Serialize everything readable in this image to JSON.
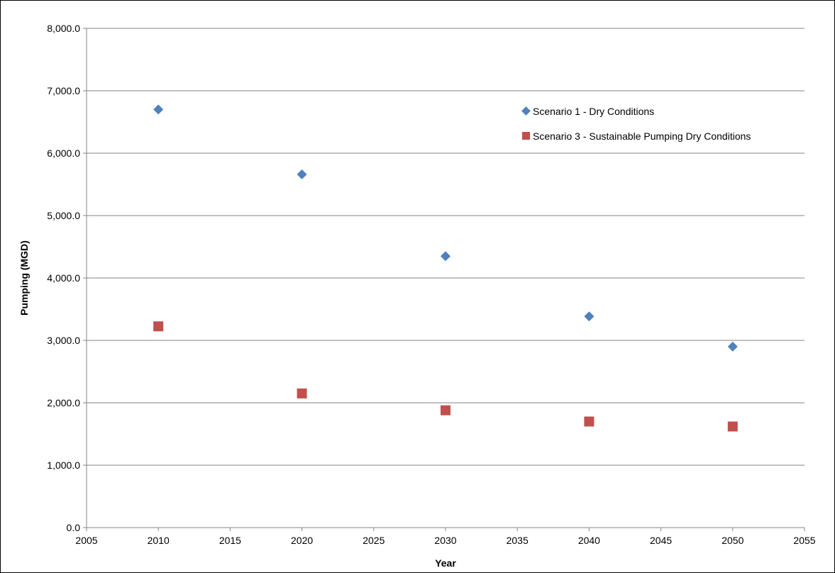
{
  "chart_data": {
    "type": "scatter",
    "title": "",
    "xlabel": "Year",
    "ylabel": "Pumping (MGD)",
    "xlim": [
      2005,
      2055
    ],
    "ylim": [
      0,
      8000
    ],
    "x_ticks": [
      2005,
      2010,
      2015,
      2020,
      2025,
      2030,
      2035,
      2040,
      2045,
      2050,
      2055
    ],
    "y_ticks": [
      0,
      1000,
      2000,
      3000,
      4000,
      5000,
      6000,
      7000,
      8000
    ],
    "x_tick_labels": [
      "2005",
      "2010",
      "2015",
      "2020",
      "2025",
      "2030",
      "2035",
      "2040",
      "2045",
      "2050",
      "2055"
    ],
    "y_tick_labels": [
      "0.0",
      "1,000.0",
      "2,000.0",
      "3,000.0",
      "4,000.0",
      "5,000.0",
      "6,000.0",
      "7,000.0",
      "8,000.0"
    ],
    "grid": {
      "horizontal": true,
      "vertical": false
    },
    "legend_position": "top-right",
    "series": [
      {
        "name": "Scenario 1 - Dry Conditions",
        "marker": "diamond",
        "color": "#4F81BD",
        "x": [
          2010,
          2020,
          2030,
          2040,
          2050
        ],
        "y": [
          6700,
          5660,
          4350,
          3385,
          2900
        ]
      },
      {
        "name": "Scenario 3 - Sustainable Pumping Dry Conditions",
        "marker": "square",
        "color": "#C0504D",
        "x": [
          2010,
          2020,
          2030,
          2040,
          2050
        ],
        "y": [
          3225,
          2150,
          1880,
          1700,
          1620
        ]
      }
    ]
  }
}
